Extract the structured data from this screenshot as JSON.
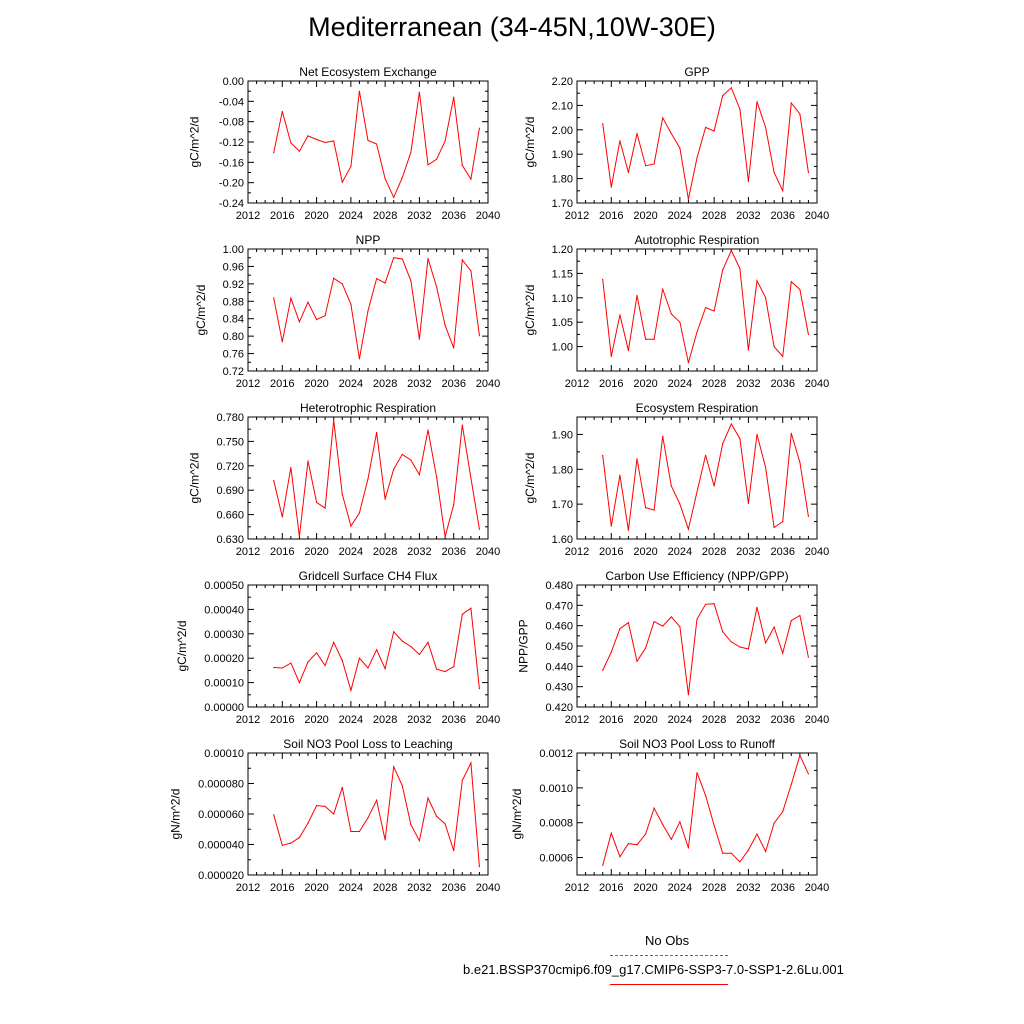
{
  "title": "Mediterranean (34-45N,10W-30E)",
  "colors": {
    "series": "#ff0000",
    "obs": "#5555ff",
    "axis": "#000000"
  },
  "legend": {
    "obs_label": "No Obs",
    "model_label": "b.e21.BSSP370cmip6.f09_g17.CMIP6-SSP3-7.0-SSP1-2.6Lu.001"
  },
  "chart_data": [
    {
      "type": "line",
      "title": "Net Ecosystem Exchange",
      "ylabel": "gC/m^2/d",
      "xlim": [
        2012,
        2040
      ],
      "ylim": [
        -0.24,
        0.0
      ],
      "xticks": [
        "2012",
        "2016",
        "2020",
        "2024",
        "2028",
        "2032",
        "2036",
        "2040"
      ],
      "yticks": [
        "0.00",
        "-0.04",
        "-0.08",
        "-0.12",
        "-0.16",
        "-0.20",
        "-0.24"
      ],
      "ytick_values": [
        0,
        -0.04,
        -0.08,
        -0.12,
        -0.16,
        -0.2,
        -0.24
      ],
      "x": [
        2015,
        2016,
        2017,
        2018,
        2019,
        2020,
        2021,
        2022,
        2023,
        2024,
        2025,
        2026,
        2027,
        2028,
        2029,
        2030,
        2031,
        2032,
        2033,
        2034,
        2035,
        2036,
        2037,
        2038,
        2039
      ],
      "y": [
        -0.141,
        -0.06,
        -0.122,
        -0.138,
        -0.108,
        -0.115,
        -0.121,
        -0.118,
        -0.199,
        -0.168,
        -0.02,
        -0.117,
        -0.124,
        -0.192,
        -0.229,
        -0.19,
        -0.14,
        -0.022,
        -0.165,
        -0.154,
        -0.118,
        -0.032,
        -0.166,
        -0.193,
        -0.093
      ]
    },
    {
      "type": "line",
      "title": "GPP",
      "ylabel": "gC/m^2/d",
      "xlim": [
        2012,
        2040
      ],
      "ylim": [
        1.7,
        2.2
      ],
      "xticks": [
        "2012",
        "2016",
        "2020",
        "2024",
        "2028",
        "2032",
        "2036",
        "2040"
      ],
      "yticks": [
        "2.20",
        "2.10",
        "2.00",
        "1.90",
        "1.80",
        "1.70"
      ],
      "ytick_values": [
        2.2,
        2.1,
        2.0,
        1.9,
        1.8,
        1.7
      ],
      "x": [
        2015,
        2016,
        2017,
        2018,
        2019,
        2020,
        2021,
        2022,
        2023,
        2024,
        2025,
        2026,
        2027,
        2028,
        2029,
        2030,
        2031,
        2032,
        2033,
        2034,
        2035,
        2036,
        2037,
        2038,
        2039
      ],
      "y": [
        2.025,
        1.765,
        1.955,
        1.825,
        1.985,
        1.853,
        1.86,
        2.049,
        1.985,
        1.925,
        1.715,
        1.885,
        2.01,
        1.995,
        2.14,
        2.172,
        2.085,
        1.788,
        2.115,
        2.01,
        1.825,
        1.75,
        2.11,
        2.065,
        1.825
      ]
    },
    {
      "type": "line",
      "title": "NPP",
      "ylabel": "gC/m^2/d",
      "xlim": [
        2012,
        2040
      ],
      "ylim": [
        0.72,
        1.0
      ],
      "xticks": [
        "2012",
        "2016",
        "2020",
        "2024",
        "2028",
        "2032",
        "2036",
        "2040"
      ],
      "yticks": [
        "1.00",
        "0.96",
        "0.92",
        "0.88",
        "0.84",
        "0.80",
        "0.76",
        "0.72"
      ],
      "ytick_values": [
        1.0,
        0.96,
        0.92,
        0.88,
        0.84,
        0.8,
        0.76,
        0.72
      ],
      "x": [
        2015,
        2016,
        2017,
        2018,
        2019,
        2020,
        2021,
        2022,
        2023,
        2024,
        2025,
        2026,
        2027,
        2028,
        2029,
        2030,
        2031,
        2032,
        2033,
        2034,
        2035,
        2036,
        2037,
        2038,
        2039
      ],
      "y": [
        0.888,
        0.787,
        0.887,
        0.833,
        0.878,
        0.838,
        0.847,
        0.933,
        0.92,
        0.873,
        0.748,
        0.858,
        0.932,
        0.922,
        0.98,
        0.977,
        0.927,
        0.793,
        0.978,
        0.913,
        0.825,
        0.773,
        0.975,
        0.95,
        0.801
      ]
    },
    {
      "type": "line",
      "title": "Autotrophic Respiration",
      "ylabel": "gC/m^2/d",
      "xlim": [
        2012,
        2040
      ],
      "ylim": [
        0.95,
        1.2
      ],
      "xticks": [
        "2012",
        "2016",
        "2020",
        "2024",
        "2028",
        "2032",
        "2036",
        "2040"
      ],
      "yticks": [
        "1.20",
        "1.15",
        "1.10",
        "1.05",
        "1.00"
      ],
      "ytick_values": [
        1.2,
        1.15,
        1.1,
        1.05,
        1.0
      ],
      "x": [
        2015,
        2016,
        2017,
        2018,
        2019,
        2020,
        2021,
        2022,
        2023,
        2024,
        2025,
        2026,
        2027,
        2028,
        2029,
        2030,
        2031,
        2032,
        2033,
        2034,
        2035,
        2036,
        2037,
        2038,
        2039
      ],
      "y": [
        1.138,
        0.98,
        1.065,
        0.992,
        1.105,
        1.015,
        1.015,
        1.118,
        1.067,
        1.05,
        0.967,
        1.03,
        1.08,
        1.073,
        1.157,
        1.197,
        1.16,
        0.993,
        1.135,
        1.1,
        1.0,
        0.98,
        1.133,
        1.117,
        1.025
      ]
    },
    {
      "type": "line",
      "title": "Heterotrophic Respiration",
      "ylabel": "gC/m^2/d",
      "xlim": [
        2012,
        2040
      ],
      "ylim": [
        0.63,
        0.78
      ],
      "xticks": [
        "2012",
        "2016",
        "2020",
        "2024",
        "2028",
        "2032",
        "2036",
        "2040"
      ],
      "yticks": [
        "0.780",
        "0.750",
        "0.720",
        "0.690",
        "0.660",
        "0.630"
      ],
      "ytick_values": [
        0.78,
        0.75,
        0.72,
        0.69,
        0.66,
        0.63
      ],
      "x": [
        2015,
        2016,
        2017,
        2018,
        2019,
        2020,
        2021,
        2022,
        2023,
        2024,
        2025,
        2026,
        2027,
        2028,
        2029,
        2030,
        2031,
        2032,
        2033,
        2034,
        2035,
        2036,
        2037,
        2038,
        2039
      ],
      "y": [
        0.702,
        0.657,
        0.718,
        0.633,
        0.726,
        0.675,
        0.668,
        0.776,
        0.685,
        0.646,
        0.662,
        0.704,
        0.761,
        0.679,
        0.716,
        0.734,
        0.727,
        0.709,
        0.764,
        0.706,
        0.633,
        0.672,
        0.77,
        0.705,
        0.642
      ]
    },
    {
      "type": "line",
      "title": "Ecosystem Respiration",
      "ylabel": "gC/m^2/d",
      "xlim": [
        2012,
        2040
      ],
      "ylim": [
        1.6,
        1.95
      ],
      "xticks": [
        "2012",
        "2016",
        "2020",
        "2024",
        "2028",
        "2032",
        "2036",
        "2040"
      ],
      "yticks": [
        "1.90",
        "1.80",
        "1.70",
        "1.60"
      ],
      "ytick_values": [
        1.9,
        1.8,
        1.7,
        1.6
      ],
      "x": [
        2015,
        2016,
        2017,
        2018,
        2019,
        2020,
        2021,
        2022,
        2023,
        2024,
        2025,
        2026,
        2027,
        2028,
        2029,
        2030,
        2031,
        2032,
        2033,
        2034,
        2035,
        2036,
        2037,
        2038,
        2039
      ],
      "y": [
        1.84,
        1.637,
        1.783,
        1.625,
        1.83,
        1.69,
        1.683,
        1.895,
        1.752,
        1.7,
        1.628,
        1.735,
        1.84,
        1.752,
        1.873,
        1.93,
        1.888,
        1.702,
        1.9,
        1.805,
        1.633,
        1.65,
        1.903,
        1.82,
        1.665
      ]
    },
    {
      "type": "line",
      "title": "Gridcell Surface CH4 Flux",
      "ylabel": "gC/m^2/d",
      "xlim": [
        2012,
        2040
      ],
      "ylim": [
        0.0,
        0.0005
      ],
      "xticks": [
        "2012",
        "2016",
        "2020",
        "2024",
        "2028",
        "2032",
        "2036",
        "2040"
      ],
      "yticks": [
        "0.00050",
        "0.00040",
        "0.00030",
        "0.00020",
        "0.00010",
        "0.00000"
      ],
      "ytick_values": [
        0.0005,
        0.0004,
        0.0003,
        0.0002,
        0.0001,
        0.0
      ],
      "x": [
        2015,
        2016,
        2017,
        2018,
        2019,
        2020,
        2021,
        2022,
        2023,
        2024,
        2025,
        2026,
        2027,
        2028,
        2029,
        2030,
        2031,
        2032,
        2033,
        2034,
        2035,
        2036,
        2037,
        2038,
        2039
      ],
      "y": [
        0.000162,
        0.00016,
        0.00018,
        0.0001,
        0.000185,
        0.000222,
        0.00017,
        0.000265,
        0.00019,
        6.8e-05,
        0.0002,
        0.00016,
        0.000235,
        0.000157,
        0.000308,
        0.00027,
        0.000248,
        0.000215,
        0.000265,
        0.000155,
        0.000145,
        0.000165,
        0.00038,
        0.000405,
        7.5e-05
      ]
    },
    {
      "type": "line",
      "title": "Carbon Use Efficiency (NPP/GPP)",
      "ylabel": "NPP/GPP",
      "xlim": [
        2012,
        2040
      ],
      "ylim": [
        0.42,
        0.48
      ],
      "xticks": [
        "2012",
        "2016",
        "2020",
        "2024",
        "2028",
        "2032",
        "2036",
        "2040"
      ],
      "yticks": [
        "0.480",
        "0.470",
        "0.460",
        "0.450",
        "0.440",
        "0.430",
        "0.420"
      ],
      "ytick_values": [
        0.48,
        0.47,
        0.46,
        0.45,
        0.44,
        0.43,
        0.42
      ],
      "x": [
        2015,
        2016,
        2017,
        2018,
        2019,
        2020,
        2021,
        2022,
        2023,
        2024,
        2025,
        2026,
        2027,
        2028,
        2029,
        2030,
        2031,
        2032,
        2033,
        2034,
        2035,
        2036,
        2037,
        2038,
        2039
      ],
      "y": [
        0.438,
        0.447,
        0.4585,
        0.4615,
        0.4425,
        0.449,
        0.462,
        0.4598,
        0.4643,
        0.4595,
        0.426,
        0.4633,
        0.4705,
        0.4708,
        0.457,
        0.452,
        0.4495,
        0.4485,
        0.469,
        0.4515,
        0.4593,
        0.4465,
        0.4625,
        0.465,
        0.4445
      ]
    },
    {
      "type": "line",
      "title": "Soil NO3 Pool Loss to Leaching",
      "ylabel": "gN/m^2/d",
      "xlim": [
        2012,
        2040
      ],
      "ylim": [
        2e-05,
        0.0001
      ],
      "xticks": [
        "2012",
        "2016",
        "2020",
        "2024",
        "2028",
        "2032",
        "2036",
        "2040"
      ],
      "yticks": [
        "0.00010",
        "0.000080",
        "0.000060",
        "0.000040",
        "0.000020"
      ],
      "ytick_values": [
        0.0001,
        8e-05,
        6e-05,
        4e-05,
        2e-05
      ],
      "x": [
        2015,
        2016,
        2017,
        2018,
        2019,
        2020,
        2021,
        2022,
        2023,
        2024,
        2025,
        2026,
        2027,
        2028,
        2029,
        2030,
        2031,
        2032,
        2033,
        2034,
        2035,
        2036,
        2037,
        2038,
        2039
      ],
      "y": [
        5.95e-05,
        3.95e-05,
        4.1e-05,
        4.45e-05,
        5.4e-05,
        6.55e-05,
        6.5e-05,
        6e-05,
        7.75e-05,
        4.85e-05,
        4.85e-05,
        5.75e-05,
        6.9e-05,
        4.3e-05,
        9.1e-05,
        7.85e-05,
        5.3e-05,
        4.25e-05,
        7.05e-05,
        5.85e-05,
        5.35e-05,
        3.6e-05,
        8.2e-05,
        9.35e-05,
        2.55e-05
      ]
    },
    {
      "type": "line",
      "title": "Soil NO3 Pool Loss to Runoff",
      "ylabel": "gN/m^2/d",
      "xlim": [
        2012,
        2040
      ],
      "ylim": [
        0.0005,
        0.0012
      ],
      "xticks": [
        "2012",
        "2016",
        "2020",
        "2024",
        "2028",
        "2032",
        "2036",
        "2040"
      ],
      "yticks": [
        "0.0012",
        "0.0010",
        "0.0008",
        "0.0006"
      ],
      "ytick_values": [
        0.0012,
        0.001,
        0.0008,
        0.0006
      ],
      "x": [
        2015,
        2016,
        2017,
        2018,
        2019,
        2020,
        2021,
        2022,
        2023,
        2024,
        2025,
        2026,
        2027,
        2028,
        2029,
        2030,
        2031,
        2032,
        2033,
        2034,
        2035,
        2036,
        2037,
        2038,
        2039
      ],
      "y": [
        0.000555,
        0.00074,
        0.000605,
        0.00068,
        0.000673,
        0.000735,
        0.000883,
        0.00079,
        0.000705,
        0.000805,
        0.000655,
        0.001087,
        0.000957,
        0.000785,
        0.000625,
        0.000625,
        0.000575,
        0.000643,
        0.000735,
        0.000635,
        0.000797,
        0.000863,
        0.00102,
        0.001187,
        0.00108
      ]
    }
  ]
}
